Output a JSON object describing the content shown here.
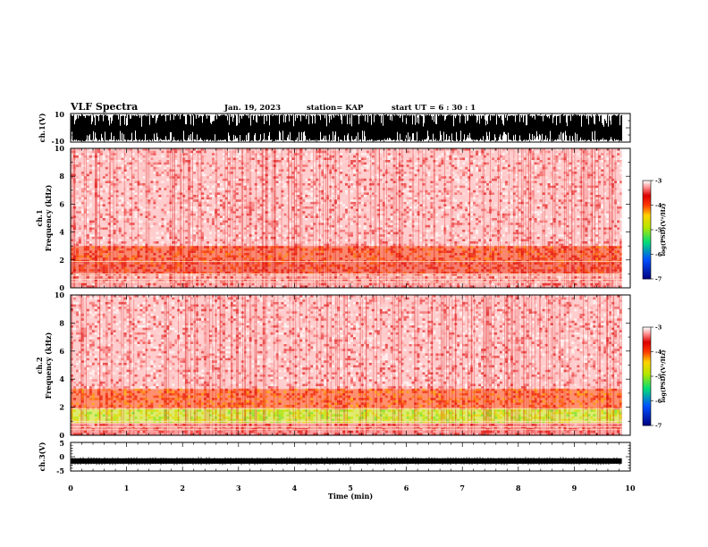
{
  "header": {
    "title": "VLF Spectra",
    "date": "Jan. 19, 2023",
    "station": "station= KAP",
    "start": "start  UT =   6 : 30 : 1"
  },
  "chart_data": [
    {
      "id": "ch1-waveform",
      "type": "line",
      "title": "",
      "xlabel": "",
      "ylabel": "ch.1(V)",
      "xlim": [
        0,
        10
      ],
      "ylim": [
        -10,
        10
      ],
      "yticks": [
        "10",
        "-10"
      ],
      "data_end_min": 9.85,
      "description_values": {
        "min": -10,
        "max": 10
      }
    },
    {
      "id": "ch1-spectrogram",
      "type": "heatmap",
      "xlabel": "",
      "ylabel": "ch.1\nFrequency (kHz)",
      "ylabel_lines": [
        "ch.1",
        "Frequency (kHz)"
      ],
      "xlim": [
        0,
        10
      ],
      "ylim": [
        0,
        10
      ],
      "yticks": [
        "0",
        "2",
        "4",
        "6",
        "8",
        "10"
      ],
      "colorbar": {
        "label": "log(PSD)(V²/Hz)",
        "range": [
          -7,
          -3
        ],
        "ticks": [
          "-3",
          "-4",
          "-5",
          "-6",
          "-7"
        ]
      },
      "bands": [
        {
          "from_khz": 0,
          "to_khz": 1.0,
          "level": -3.3
        },
        {
          "from_khz": 1.0,
          "to_khz": 1.9,
          "level": -3.8
        },
        {
          "from_khz": 1.9,
          "to_khz": 3.0,
          "level": -3.9
        },
        {
          "from_khz": 3.0,
          "to_khz": 10,
          "level": -3.2
        }
      ]
    },
    {
      "id": "ch2-spectrogram",
      "type": "heatmap",
      "xlabel": "",
      "ylabel_lines": [
        "ch.2",
        "Frequency (kHz)"
      ],
      "xlim": [
        0,
        10
      ],
      "ylim": [
        0,
        10
      ],
      "yticks": [
        "0",
        "2",
        "4",
        "6",
        "8",
        "10"
      ],
      "colorbar": {
        "label": "log(PSD)(V²/Hz)",
        "range": [
          -7,
          -3
        ],
        "ticks": [
          "-3",
          "-4",
          "-5",
          "-6",
          "-7"
        ]
      },
      "bands": [
        {
          "from_khz": 0,
          "to_khz": 0.9,
          "level": -3.4
        },
        {
          "from_khz": 0.9,
          "to_khz": 1.9,
          "level": -4.8
        },
        {
          "from_khz": 1.9,
          "to_khz": 3.3,
          "level": -4.0
        },
        {
          "from_khz": 3.3,
          "to_khz": 10,
          "level": -3.2
        }
      ]
    },
    {
      "id": "ch3-waveform",
      "type": "line",
      "ylabel": "ch.3(V)",
      "xlabel": "Time (min)",
      "xlim": [
        0,
        10
      ],
      "ylim": [
        -5,
        5
      ],
      "yticks": [
        "5",
        "0",
        "-5"
      ],
      "xticks": [
        "0",
        "1",
        "2",
        "3",
        "4",
        "5",
        "6",
        "7",
        "8",
        "9",
        "10"
      ],
      "data_end_min": 9.85,
      "trace_level_v": -1.5
    }
  ]
}
